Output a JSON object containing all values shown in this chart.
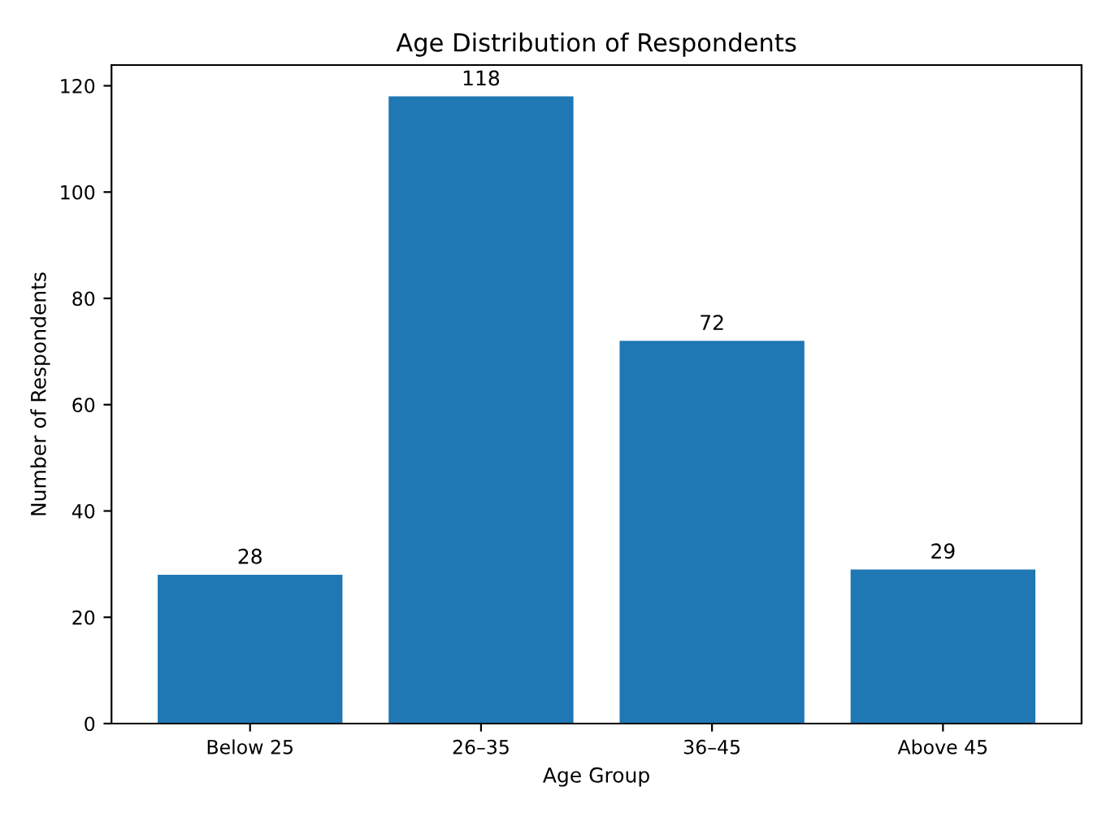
{
  "chart_data": {
    "type": "bar",
    "title": "Age Distribution of Respondents",
    "xlabel": "Age Group",
    "ylabel": "Number of Respondents",
    "categories": [
      "Below 25",
      "26–35",
      "36–45",
      "Above 45"
    ],
    "values": [
      28,
      118,
      72,
      29
    ],
    "color": "#1f77b4",
    "data_labels": true,
    "ylim": [
      0,
      123.9
    ],
    "yticks": [
      0,
      20,
      40,
      60,
      80,
      100,
      120
    ],
    "grid": false,
    "legend": false
  }
}
